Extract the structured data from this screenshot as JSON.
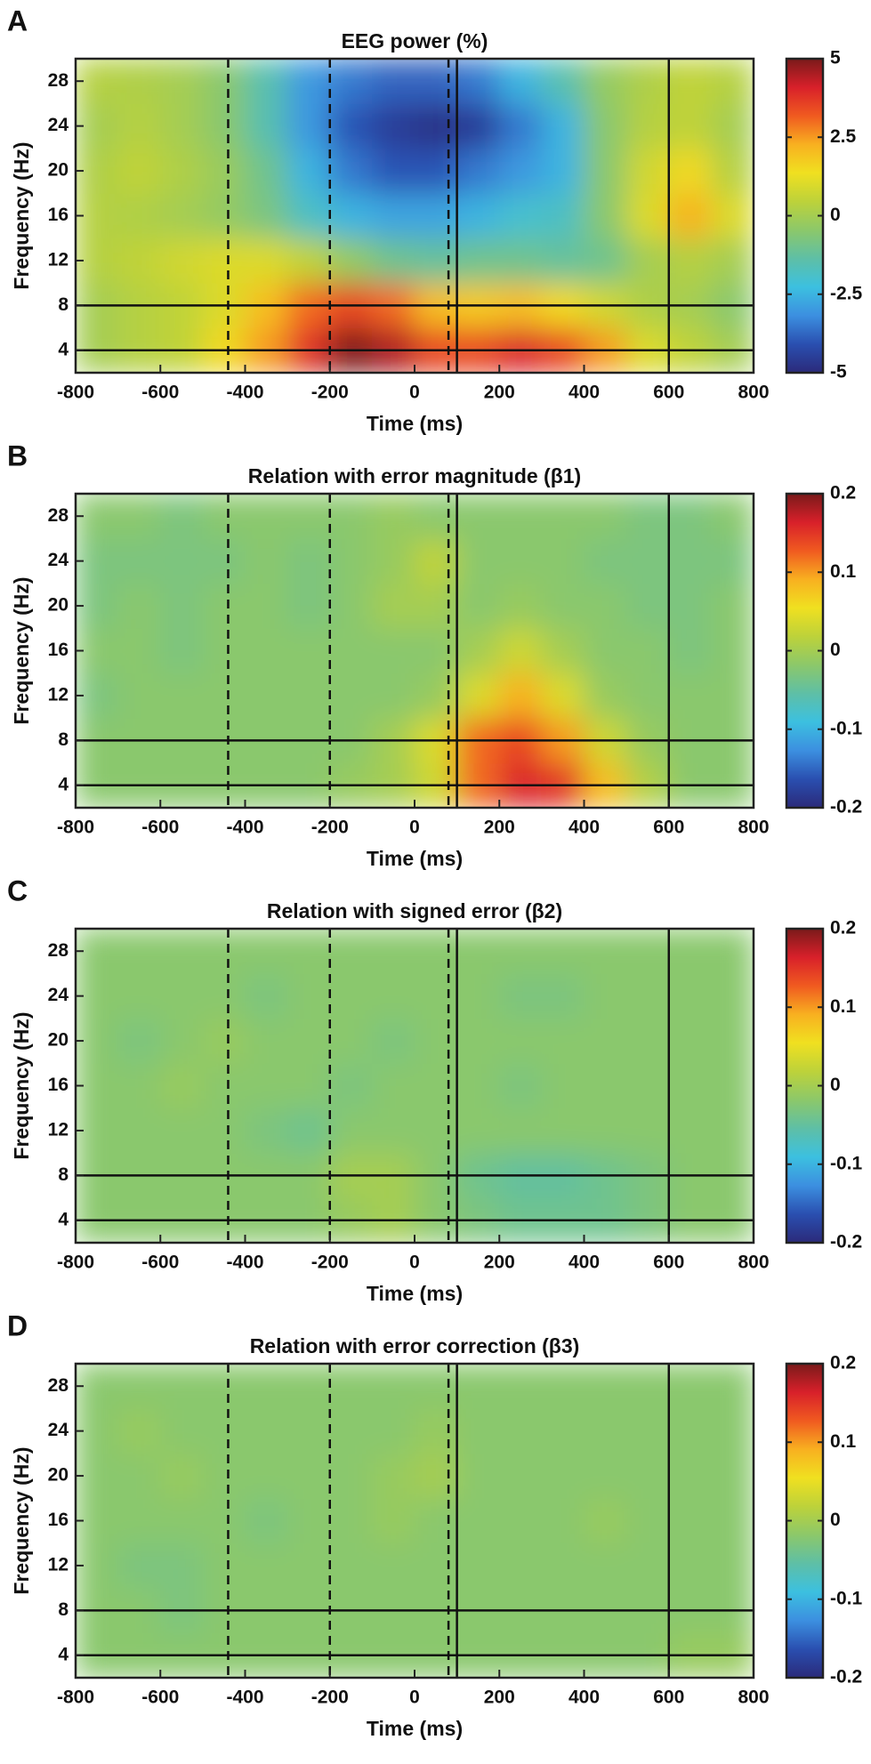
{
  "chart_data": [
    {
      "type": "heatmap",
      "label": "A",
      "title": "EEG power (%)",
      "xlabel": "Time (ms)",
      "ylabel": "Frequency (Hz)",
      "x": [
        -750,
        -650,
        -550,
        -450,
        -350,
        -250,
        -150,
        -50,
        50,
        150,
        250,
        350,
        450,
        550,
        650,
        750
      ],
      "y": [
        4,
        8,
        12,
        16,
        20,
        24,
        28
      ],
      "z": [
        [
          0,
          0.3,
          0.5,
          1.5,
          2.5,
          3.8,
          5,
          4.5,
          3.5,
          3.5,
          4,
          3.5,
          2.5,
          1,
          0.5,
          0
        ],
        [
          0,
          0.3,
          0.5,
          1,
          2,
          3,
          3.5,
          3,
          2,
          1.8,
          2,
          1.5,
          0.8,
          0.2,
          0,
          -0.5
        ],
        [
          0.3,
          0.5,
          0.8,
          1,
          1,
          0.5,
          -0.3,
          -1,
          -1.2,
          -1,
          -1,
          -1.2,
          -1,
          0,
          0.3,
          0
        ],
        [
          0.3,
          0.2,
          0,
          -0.3,
          -0.8,
          -1.8,
          -2.5,
          -2.8,
          -2.8,
          -2.5,
          -2,
          -1.8,
          -0.5,
          1,
          2.2,
          1
        ],
        [
          0.2,
          0.5,
          0.2,
          -0.2,
          -1,
          -2.5,
          -3.5,
          -4,
          -4,
          -3.5,
          -3,
          -2.5,
          -0.5,
          0.8,
          1.5,
          0.3
        ],
        [
          0,
          0.3,
          0,
          -0.5,
          -1.5,
          -3,
          -4,
          -4.5,
          -4.8,
          -4.5,
          -3.5,
          -2.5,
          -0.5,
          0.3,
          0.5,
          0
        ],
        [
          0.3,
          0.2,
          0,
          -0.5,
          -1.5,
          -3,
          -3.5,
          -3.8,
          -3.8,
          -3.5,
          -2.5,
          -1.5,
          -0.3,
          0.2,
          0.5,
          0.3
        ]
      ],
      "xlim": [
        -800,
        800
      ],
      "xticks": [
        -800,
        -600,
        -400,
        -200,
        0,
        200,
        400,
        600,
        800
      ],
      "ylim": [
        2,
        30
      ],
      "yticks": [
        4,
        8,
        12,
        16,
        20,
        24,
        28
      ],
      "zlim": [
        -5,
        5
      ],
      "zticks": [
        -5,
        -2.5,
        0,
        2.5,
        5
      ],
      "colormap": [
        "#2b2a7a",
        "#2a4fb0",
        "#3c8fe0",
        "#3cc0e0",
        "#5ebfa6",
        "#8cc86a",
        "#bdd23a",
        "#f0e020",
        "#f8b020",
        "#f05a20",
        "#d8202a",
        "#7a1a1a"
      ],
      "dashed_x": [
        -440,
        -200,
        80
      ],
      "solid_x": [
        100,
        600
      ],
      "solid_y": [
        4,
        8
      ]
    },
    {
      "type": "heatmap",
      "label": "B",
      "title": "Relation with error magnitude (β1)",
      "xlabel": "Time (ms)",
      "ylabel": "Frequency (Hz)",
      "x": [
        -750,
        -650,
        -550,
        -450,
        -350,
        -250,
        -150,
        -50,
        50,
        150,
        250,
        350,
        450,
        550,
        650,
        750
      ],
      "y": [
        4,
        8,
        12,
        16,
        20,
        24,
        28
      ],
      "z": [
        [
          -0.02,
          -0.02,
          -0.02,
          -0.02,
          -0.02,
          -0.02,
          -0.01,
          0,
          0.03,
          0.12,
          0.16,
          0.15,
          0.08,
          0.01,
          -0.02,
          -0.02
        ],
        [
          -0.02,
          -0.02,
          -0.02,
          -0.02,
          -0.02,
          -0.02,
          -0.02,
          0,
          0.04,
          0.12,
          0.14,
          0.1,
          0.03,
          -0.01,
          -0.02,
          -0.02
        ],
        [
          -0.03,
          -0.02,
          -0.02,
          -0.02,
          -0.02,
          -0.02,
          -0.02,
          -0.02,
          -0.01,
          0.04,
          0.09,
          0.04,
          -0.01,
          -0.02,
          -0.02,
          -0.02
        ],
        [
          -0.02,
          -0.02,
          -0.03,
          -0.02,
          -0.02,
          -0.02,
          -0.02,
          -0.02,
          -0.02,
          0,
          0.03,
          0,
          -0.02,
          -0.02,
          -0.03,
          -0.02
        ],
        [
          -0.03,
          -0.02,
          -0.03,
          -0.02,
          -0.02,
          -0.03,
          -0.02,
          0,
          0,
          -0.02,
          -0.01,
          -0.02,
          -0.02,
          -0.03,
          -0.03,
          -0.02
        ],
        [
          -0.03,
          -0.03,
          -0.03,
          -0.03,
          -0.02,
          -0.03,
          -0.02,
          -0.01,
          0.02,
          -0.02,
          -0.02,
          -0.02,
          -0.03,
          -0.03,
          -0.03,
          -0.03
        ],
        [
          -0.02,
          -0.02,
          -0.03,
          -0.02,
          -0.02,
          -0.02,
          -0.02,
          -0.01,
          -0.02,
          -0.02,
          -0.02,
          -0.02,
          -0.02,
          -0.03,
          -0.03,
          -0.02
        ]
      ],
      "xlim": [
        -800,
        800
      ],
      "xticks": [
        -800,
        -600,
        -400,
        -200,
        0,
        200,
        400,
        600,
        800
      ],
      "ylim": [
        2,
        30
      ],
      "yticks": [
        4,
        8,
        12,
        16,
        20,
        24,
        28
      ],
      "zlim": [
        -0.2,
        0.2
      ],
      "zticks": [
        -0.2,
        -0.1,
        0,
        0.1,
        0.2
      ],
      "colormap": [
        "#2b2a7a",
        "#2a4fb0",
        "#3c8fe0",
        "#3cc0e0",
        "#5ebfa6",
        "#8cc86a",
        "#bdd23a",
        "#f0e020",
        "#f8b020",
        "#f05a20",
        "#d8202a",
        "#7a1a1a"
      ],
      "dashed_x": [
        -440,
        -200,
        80
      ],
      "solid_x": [
        100,
        600
      ],
      "solid_y": [
        4,
        8
      ]
    },
    {
      "type": "heatmap",
      "label": "C",
      "title": "Relation with signed error (β2)",
      "xlabel": "Time (ms)",
      "ylabel": "Frequency (Hz)",
      "x": [
        -750,
        -650,
        -550,
        -450,
        -350,
        -250,
        -150,
        -50,
        50,
        150,
        250,
        350,
        450,
        550,
        650,
        750
      ],
      "y": [
        4,
        8,
        12,
        16,
        20,
        24,
        28
      ],
      "z": [
        [
          -0.02,
          -0.02,
          -0.02,
          -0.02,
          -0.02,
          -0.02,
          -0.01,
          0,
          -0.02,
          -0.03,
          -0.04,
          -0.04,
          -0.04,
          -0.03,
          -0.02,
          -0.02
        ],
        [
          -0.02,
          -0.02,
          -0.02,
          -0.02,
          -0.02,
          -0.02,
          0,
          0,
          -0.02,
          -0.04,
          -0.05,
          -0.05,
          -0.04,
          -0.03,
          -0.02,
          -0.02
        ],
        [
          -0.02,
          -0.02,
          -0.02,
          -0.02,
          -0.03,
          -0.04,
          -0.02,
          -0.02,
          -0.02,
          -0.02,
          -0.02,
          -0.02,
          -0.02,
          -0.02,
          -0.02,
          -0.02
        ],
        [
          -0.02,
          -0.02,
          -0.01,
          -0.02,
          -0.02,
          -0.02,
          -0.03,
          -0.02,
          -0.02,
          -0.02,
          -0.03,
          -0.02,
          -0.02,
          -0.02,
          -0.02,
          -0.02
        ],
        [
          -0.02,
          -0.03,
          -0.02,
          -0.01,
          -0.02,
          -0.02,
          -0.02,
          -0.03,
          -0.02,
          -0.02,
          -0.02,
          -0.02,
          -0.02,
          -0.02,
          -0.02,
          -0.02
        ],
        [
          -0.02,
          -0.02,
          -0.02,
          -0.02,
          -0.03,
          -0.02,
          -0.02,
          -0.02,
          -0.02,
          -0.02,
          -0.03,
          -0.03,
          -0.02,
          -0.02,
          -0.02,
          -0.02
        ],
        [
          -0.02,
          -0.02,
          -0.02,
          -0.02,
          -0.02,
          -0.02,
          -0.02,
          -0.02,
          -0.02,
          -0.02,
          -0.02,
          -0.02,
          -0.02,
          -0.02,
          -0.02,
          -0.02
        ]
      ],
      "xlim": [
        -800,
        800
      ],
      "xticks": [
        -800,
        -600,
        -400,
        -200,
        0,
        200,
        400,
        600,
        800
      ],
      "ylim": [
        2,
        30
      ],
      "yticks": [
        4,
        8,
        12,
        16,
        20,
        24,
        28
      ],
      "zlim": [
        -0.2,
        0.2
      ],
      "zticks": [
        -0.2,
        -0.1,
        0,
        0.1,
        0.2
      ],
      "colormap": [
        "#2b2a7a",
        "#2a4fb0",
        "#3c8fe0",
        "#3cc0e0",
        "#5ebfa6",
        "#8cc86a",
        "#bdd23a",
        "#f0e020",
        "#f8b020",
        "#f05a20",
        "#d8202a",
        "#7a1a1a"
      ],
      "dashed_x": [
        -440,
        -200,
        80
      ],
      "solid_x": [
        100,
        600
      ],
      "solid_y": [
        4,
        8
      ]
    },
    {
      "type": "heatmap",
      "label": "D",
      "title": "Relation with error correction (β3)",
      "xlabel": "Time (ms)",
      "ylabel": "Frequency (Hz)",
      "x": [
        -750,
        -650,
        -550,
        -450,
        -350,
        -250,
        -150,
        -50,
        50,
        150,
        250,
        350,
        450,
        550,
        650,
        750
      ],
      "y": [
        4,
        8,
        12,
        16,
        20,
        24,
        28
      ],
      "z": [
        [
          -0.02,
          -0.02,
          -0.02,
          -0.02,
          -0.02,
          -0.02,
          -0.02,
          -0.02,
          -0.02,
          -0.02,
          -0.02,
          -0.02,
          -0.02,
          -0.02,
          -0.01,
          -0.01
        ],
        [
          -0.02,
          -0.02,
          -0.03,
          -0.02,
          -0.02,
          -0.02,
          -0.02,
          -0.02,
          -0.02,
          -0.02,
          -0.02,
          -0.02,
          -0.02,
          -0.02,
          -0.02,
          -0.02
        ],
        [
          -0.02,
          -0.03,
          -0.03,
          -0.02,
          -0.02,
          -0.02,
          -0.02,
          -0.02,
          -0.02,
          -0.02,
          -0.02,
          -0.02,
          -0.02,
          -0.02,
          -0.02,
          -0.02
        ],
        [
          -0.02,
          -0.02,
          -0.02,
          -0.02,
          -0.03,
          -0.02,
          -0.02,
          -0.01,
          -0.02,
          -0.02,
          -0.02,
          -0.02,
          -0.01,
          -0.02,
          -0.02,
          -0.02
        ],
        [
          -0.02,
          -0.02,
          -0.01,
          -0.02,
          -0.02,
          -0.02,
          -0.02,
          -0.01,
          0,
          -0.02,
          -0.02,
          -0.02,
          -0.02,
          -0.02,
          -0.02,
          -0.02
        ],
        [
          -0.02,
          -0.01,
          -0.02,
          -0.02,
          -0.02,
          -0.02,
          -0.02,
          -0.02,
          -0.01,
          -0.02,
          -0.02,
          -0.02,
          -0.02,
          -0.02,
          -0.02,
          -0.02
        ],
        [
          -0.02,
          -0.02,
          -0.02,
          -0.02,
          -0.02,
          -0.02,
          -0.02,
          -0.02,
          -0.02,
          -0.02,
          -0.02,
          -0.02,
          -0.02,
          -0.02,
          -0.02,
          -0.02
        ]
      ],
      "xlim": [
        -800,
        800
      ],
      "xticks": [
        -800,
        -600,
        -400,
        -200,
        0,
        200,
        400,
        600,
        800
      ],
      "ylim": [
        2,
        30
      ],
      "yticks": [
        4,
        8,
        12,
        16,
        20,
        24,
        28
      ],
      "zlim": [
        -0.2,
        0.2
      ],
      "zticks": [
        -0.2,
        -0.1,
        0,
        0.1,
        0.2
      ],
      "colormap": [
        "#2b2a7a",
        "#2a4fb0",
        "#3c8fe0",
        "#3cc0e0",
        "#5ebfa6",
        "#8cc86a",
        "#bdd23a",
        "#f0e020",
        "#f8b020",
        "#f05a20",
        "#d8202a",
        "#7a1a1a"
      ],
      "dashed_x": [
        -440,
        -200,
        80
      ],
      "solid_x": [
        100,
        600
      ],
      "solid_y": [
        4,
        8
      ]
    }
  ]
}
